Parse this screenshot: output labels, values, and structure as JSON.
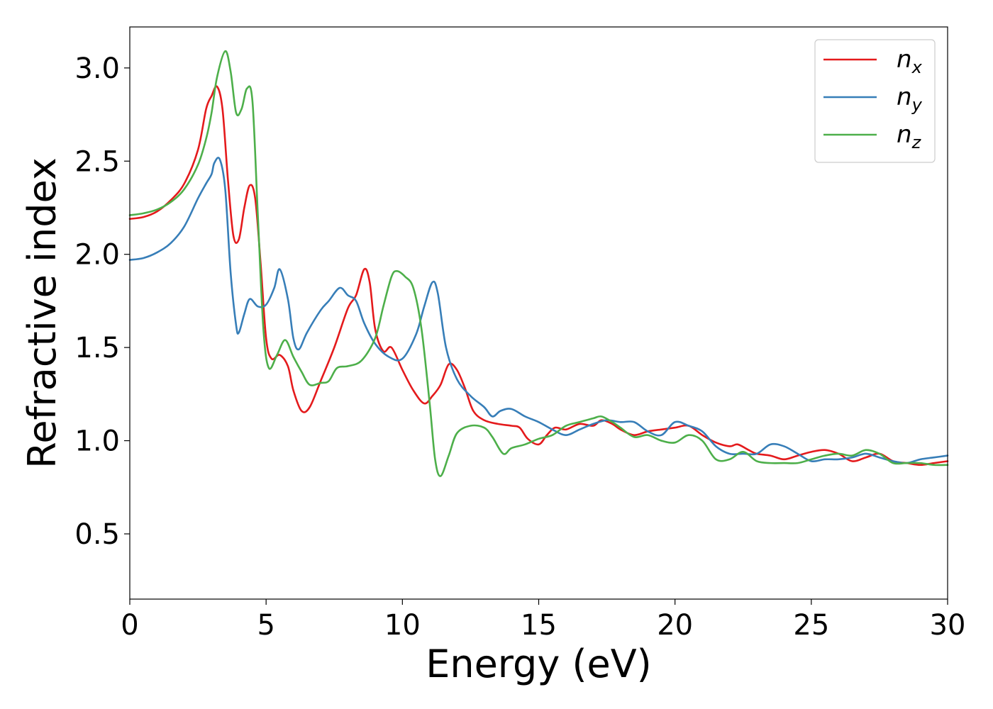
{
  "chart_data": {
    "type": "line",
    "title": "",
    "xlabel": "Energy (eV)",
    "ylabel": "Refractive index",
    "xlim": [
      0,
      30
    ],
    "ylim": [
      0.15,
      3.22
    ],
    "xticks": [
      0,
      5,
      10,
      15,
      20,
      25,
      30
    ],
    "xtick_labels": [
      "0",
      "5",
      "10",
      "15",
      "20",
      "25",
      "30"
    ],
    "yticks": [
      0.5,
      1.0,
      1.5,
      2.0,
      2.5,
      3.0
    ],
    "ytick_labels": [
      "0.5",
      "1.0",
      "1.5",
      "2.0",
      "2.5",
      "3.0"
    ],
    "grid": false,
    "legend_position": "top-right",
    "series": [
      {
        "name": "n_x",
        "legend_base": "n",
        "legend_sub": "x",
        "color": "#e41a1c",
        "points": [
          [
            0,
            2.19
          ],
          [
            0.5,
            2.2
          ],
          [
            1,
            2.23
          ],
          [
            1.5,
            2.29
          ],
          [
            2,
            2.38
          ],
          [
            2.5,
            2.56
          ],
          [
            2.8,
            2.78
          ],
          [
            3.0,
            2.85
          ],
          [
            3.2,
            2.9
          ],
          [
            3.4,
            2.78
          ],
          [
            3.6,
            2.4
          ],
          [
            3.8,
            2.1
          ],
          [
            4.0,
            2.08
          ],
          [
            4.2,
            2.25
          ],
          [
            4.4,
            2.37
          ],
          [
            4.6,
            2.3
          ],
          [
            4.8,
            1.95
          ],
          [
            5.0,
            1.55
          ],
          [
            5.2,
            1.44
          ],
          [
            5.5,
            1.46
          ],
          [
            5.8,
            1.4
          ],
          [
            6.0,
            1.27
          ],
          [
            6.3,
            1.16
          ],
          [
            6.6,
            1.18
          ],
          [
            7.0,
            1.32
          ],
          [
            7.5,
            1.5
          ],
          [
            8.0,
            1.71
          ],
          [
            8.3,
            1.78
          ],
          [
            8.6,
            1.92
          ],
          [
            8.8,
            1.85
          ],
          [
            9.0,
            1.6
          ],
          [
            9.3,
            1.48
          ],
          [
            9.6,
            1.5
          ],
          [
            10,
            1.38
          ],
          [
            10.4,
            1.27
          ],
          [
            10.8,
            1.2
          ],
          [
            11.1,
            1.24
          ],
          [
            11.4,
            1.3
          ],
          [
            11.7,
            1.41
          ],
          [
            12,
            1.38
          ],
          [
            12.3,
            1.28
          ],
          [
            12.6,
            1.16
          ],
          [
            13,
            1.11
          ],
          [
            13.5,
            1.09
          ],
          [
            14,
            1.08
          ],
          [
            14.3,
            1.07
          ],
          [
            14.6,
            1.01
          ],
          [
            15,
            0.98
          ],
          [
            15.3,
            1.03
          ],
          [
            15.6,
            1.07
          ],
          [
            16,
            1.06
          ],
          [
            16.5,
            1.09
          ],
          [
            17,
            1.08
          ],
          [
            17.3,
            1.11
          ],
          [
            17.7,
            1.09
          ],
          [
            18,
            1.06
          ],
          [
            18.5,
            1.03
          ],
          [
            19,
            1.05
          ],
          [
            19.5,
            1.06
          ],
          [
            20,
            1.07
          ],
          [
            20.5,
            1.08
          ],
          [
            21,
            1.03
          ],
          [
            21.5,
            0.99
          ],
          [
            22,
            0.97
          ],
          [
            22.3,
            0.98
          ],
          [
            22.7,
            0.95
          ],
          [
            23,
            0.93
          ],
          [
            23.5,
            0.92
          ],
          [
            24,
            0.9
          ],
          [
            24.5,
            0.92
          ],
          [
            25,
            0.94
          ],
          [
            25.5,
            0.95
          ],
          [
            26,
            0.93
          ],
          [
            26.5,
            0.89
          ],
          [
            27,
            0.91
          ],
          [
            27.5,
            0.93
          ],
          [
            28,
            0.89
          ],
          [
            28.5,
            0.88
          ],
          [
            29,
            0.87
          ],
          [
            29.5,
            0.88
          ],
          [
            30,
            0.89
          ]
        ]
      },
      {
        "name": "n_y",
        "legend_base": "n",
        "legend_sub": "y",
        "color": "#377eb8",
        "points": [
          [
            0,
            1.97
          ],
          [
            0.5,
            1.98
          ],
          [
            1,
            2.01
          ],
          [
            1.5,
            2.06
          ],
          [
            2,
            2.15
          ],
          [
            2.5,
            2.3
          ],
          [
            2.8,
            2.38
          ],
          [
            3.0,
            2.43
          ],
          [
            3.1,
            2.49
          ],
          [
            3.3,
            2.51
          ],
          [
            3.5,
            2.35
          ],
          [
            3.7,
            1.9
          ],
          [
            3.9,
            1.62
          ],
          [
            4.0,
            1.58
          ],
          [
            4.2,
            1.68
          ],
          [
            4.4,
            1.76
          ],
          [
            4.7,
            1.72
          ],
          [
            5.0,
            1.73
          ],
          [
            5.3,
            1.82
          ],
          [
            5.5,
            1.92
          ],
          [
            5.8,
            1.76
          ],
          [
            6.0,
            1.55
          ],
          [
            6.2,
            1.49
          ],
          [
            6.5,
            1.58
          ],
          [
            7.0,
            1.7
          ],
          [
            7.3,
            1.75
          ],
          [
            7.7,
            1.82
          ],
          [
            8,
            1.78
          ],
          [
            8.3,
            1.75
          ],
          [
            8.6,
            1.63
          ],
          [
            9,
            1.52
          ],
          [
            9.5,
            1.45
          ],
          [
            10,
            1.44
          ],
          [
            10.5,
            1.57
          ],
          [
            10.8,
            1.72
          ],
          [
            11.1,
            1.85
          ],
          [
            11.3,
            1.79
          ],
          [
            11.6,
            1.5
          ],
          [
            12,
            1.33
          ],
          [
            12.5,
            1.24
          ],
          [
            13,
            1.18
          ],
          [
            13.3,
            1.13
          ],
          [
            13.6,
            1.16
          ],
          [
            14,
            1.17
          ],
          [
            14.5,
            1.13
          ],
          [
            15,
            1.1
          ],
          [
            15.5,
            1.06
          ],
          [
            16,
            1.03
          ],
          [
            16.5,
            1.06
          ],
          [
            17,
            1.09
          ],
          [
            17.5,
            1.11
          ],
          [
            18,
            1.1
          ],
          [
            18.5,
            1.1
          ],
          [
            19,
            1.05
          ],
          [
            19.5,
            1.03
          ],
          [
            20,
            1.1
          ],
          [
            20.5,
            1.08
          ],
          [
            21,
            1.05
          ],
          [
            21.5,
            0.97
          ],
          [
            22,
            0.93
          ],
          [
            22.5,
            0.93
          ],
          [
            23,
            0.93
          ],
          [
            23.5,
            0.98
          ],
          [
            24,
            0.97
          ],
          [
            24.5,
            0.93
          ],
          [
            25,
            0.89
          ],
          [
            25.5,
            0.9
          ],
          [
            26,
            0.9
          ],
          [
            26.5,
            0.91
          ],
          [
            27,
            0.93
          ],
          [
            27.5,
            0.91
          ],
          [
            28,
            0.89
          ],
          [
            28.5,
            0.88
          ],
          [
            29,
            0.9
          ],
          [
            29.5,
            0.91
          ],
          [
            30,
            0.92
          ]
        ]
      },
      {
        "name": "n_z",
        "legend_base": "n",
        "legend_sub": "z",
        "color": "#4daf4a",
        "points": [
          [
            0,
            2.21
          ],
          [
            0.5,
            2.22
          ],
          [
            1,
            2.24
          ],
          [
            1.5,
            2.28
          ],
          [
            2,
            2.35
          ],
          [
            2.5,
            2.48
          ],
          [
            2.8,
            2.62
          ],
          [
            3.0,
            2.76
          ],
          [
            3.2,
            2.95
          ],
          [
            3.5,
            3.09
          ],
          [
            3.7,
            2.98
          ],
          [
            3.9,
            2.76
          ],
          [
            4.1,
            2.78
          ],
          [
            4.3,
            2.89
          ],
          [
            4.5,
            2.82
          ],
          [
            4.7,
            2.2
          ],
          [
            4.9,
            1.6
          ],
          [
            5.1,
            1.39
          ],
          [
            5.4,
            1.46
          ],
          [
            5.7,
            1.54
          ],
          [
            6.0,
            1.45
          ],
          [
            6.3,
            1.37
          ],
          [
            6.6,
            1.3
          ],
          [
            7.0,
            1.31
          ],
          [
            7.3,
            1.32
          ],
          [
            7.6,
            1.39
          ],
          [
            8.0,
            1.4
          ],
          [
            8.5,
            1.43
          ],
          [
            9.0,
            1.55
          ],
          [
            9.3,
            1.72
          ],
          [
            9.6,
            1.88
          ],
          [
            9.8,
            1.91
          ],
          [
            10.1,
            1.88
          ],
          [
            10.4,
            1.82
          ],
          [
            10.7,
            1.6
          ],
          [
            11.0,
            1.2
          ],
          [
            11.2,
            0.9
          ],
          [
            11.4,
            0.81
          ],
          [
            11.7,
            0.92
          ],
          [
            12,
            1.04
          ],
          [
            12.5,
            1.08
          ],
          [
            13,
            1.07
          ],
          [
            13.3,
            1.02
          ],
          [
            13.7,
            0.93
          ],
          [
            14,
            0.96
          ],
          [
            14.5,
            0.98
          ],
          [
            15,
            1.01
          ],
          [
            15.5,
            1.03
          ],
          [
            16,
            1.08
          ],
          [
            16.5,
            1.1
          ],
          [
            17,
            1.12
          ],
          [
            17.3,
            1.13
          ],
          [
            17.7,
            1.1
          ],
          [
            18,
            1.07
          ],
          [
            18.5,
            1.02
          ],
          [
            19,
            1.03
          ],
          [
            19.5,
            1.0
          ],
          [
            20,
            0.99
          ],
          [
            20.5,
            1.03
          ],
          [
            21,
            1.0
          ],
          [
            21.5,
            0.9
          ],
          [
            22,
            0.9
          ],
          [
            22.5,
            0.94
          ],
          [
            23,
            0.89
          ],
          [
            23.5,
            0.88
          ],
          [
            24,
            0.88
          ],
          [
            24.5,
            0.88
          ],
          [
            25,
            0.9
          ],
          [
            25.5,
            0.92
          ],
          [
            26,
            0.93
          ],
          [
            26.5,
            0.92
          ],
          [
            27,
            0.95
          ],
          [
            27.5,
            0.93
          ],
          [
            28,
            0.88
          ],
          [
            28.5,
            0.88
          ],
          [
            29,
            0.88
          ],
          [
            29.5,
            0.87
          ],
          [
            30,
            0.87
          ]
        ]
      }
    ]
  }
}
